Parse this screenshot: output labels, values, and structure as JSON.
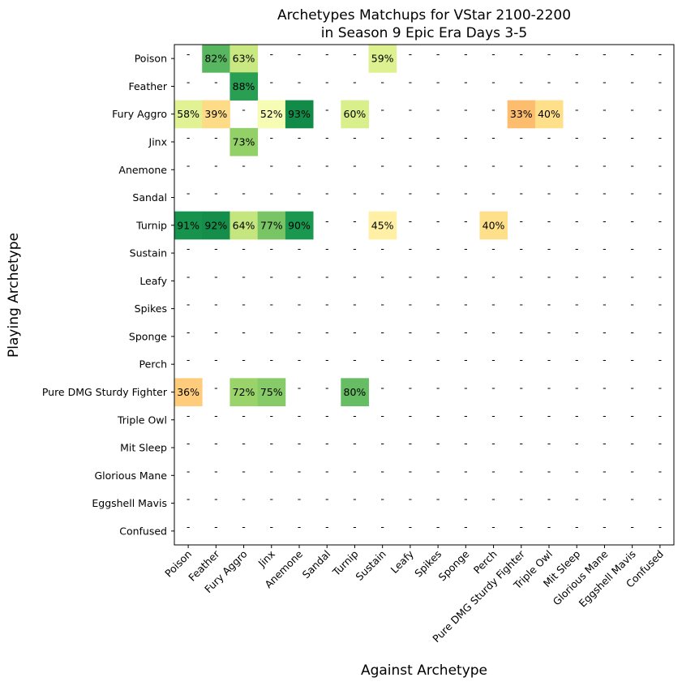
{
  "chart_data": {
    "type": "heatmap",
    "title_lines": [
      "Archetypes Matchups for VStar 2100-2200",
      "in Season 9 Epic Era Days 3-5"
    ],
    "xlabel": "Against Archetype",
    "ylabel": "Playing Archetype",
    "rows": [
      "Poison",
      "Feather",
      "Fury Aggro",
      "Jinx",
      "Anemone",
      "Sandal",
      "Turnip",
      "Sustain",
      "Leafy",
      "Spikes",
      "Sponge",
      "Perch",
      "Pure DMG Sturdy Fighter",
      "Triple Owl",
      "Mit Sleep",
      "Glorious Mane",
      "Eggshell Mavis",
      "Confused"
    ],
    "columns": [
      "Poison",
      "Feather",
      "Fury Aggro",
      "Jinx",
      "Anemone",
      "Sandal",
      "Turnip",
      "Sustain",
      "Leafy",
      "Spikes",
      "Sponge",
      "Perch",
      "Pure DMG Sturdy Fighter",
      "Triple Owl",
      "Mit Sleep",
      "Glorious Mane",
      "Eggshell Mavis",
      "Confused"
    ],
    "value_unit": "% win rate",
    "missing_label": "-",
    "values": [
      [
        null,
        82,
        63,
        null,
        null,
        null,
        null,
        59,
        null,
        null,
        null,
        null,
        null,
        null,
        null,
        null,
        null,
        null
      ],
      [
        null,
        null,
        88,
        null,
        null,
        null,
        null,
        null,
        null,
        null,
        null,
        null,
        null,
        null,
        null,
        null,
        null,
        null
      ],
      [
        58,
        39,
        null,
        52,
        93,
        null,
        60,
        null,
        null,
        null,
        null,
        null,
        33,
        40,
        null,
        null,
        null,
        null
      ],
      [
        null,
        null,
        73,
        null,
        null,
        null,
        null,
        null,
        null,
        null,
        null,
        null,
        null,
        null,
        null,
        null,
        null,
        null
      ],
      [
        null,
        null,
        null,
        null,
        null,
        null,
        null,
        null,
        null,
        null,
        null,
        null,
        null,
        null,
        null,
        null,
        null,
        null
      ],
      [
        null,
        null,
        null,
        null,
        null,
        null,
        null,
        null,
        null,
        null,
        null,
        null,
        null,
        null,
        null,
        null,
        null,
        null
      ],
      [
        91,
        92,
        64,
        77,
        90,
        null,
        null,
        45,
        null,
        null,
        null,
        40,
        null,
        null,
        null,
        null,
        null,
        null
      ],
      [
        null,
        null,
        null,
        null,
        null,
        null,
        null,
        null,
        null,
        null,
        null,
        null,
        null,
        null,
        null,
        null,
        null,
        null
      ],
      [
        null,
        null,
        null,
        null,
        null,
        null,
        null,
        null,
        null,
        null,
        null,
        null,
        null,
        null,
        null,
        null,
        null,
        null
      ],
      [
        null,
        null,
        null,
        null,
        null,
        null,
        null,
        null,
        null,
        null,
        null,
        null,
        null,
        null,
        null,
        null,
        null,
        null
      ],
      [
        null,
        null,
        null,
        null,
        null,
        null,
        null,
        null,
        null,
        null,
        null,
        null,
        null,
        null,
        null,
        null,
        null,
        null
      ],
      [
        null,
        null,
        null,
        null,
        null,
        null,
        null,
        null,
        null,
        null,
        null,
        null,
        null,
        null,
        null,
        null,
        null,
        null
      ],
      [
        36,
        null,
        72,
        75,
        null,
        null,
        80,
        null,
        null,
        null,
        null,
        null,
        null,
        null,
        null,
        null,
        null,
        null
      ],
      [
        null,
        null,
        null,
        null,
        null,
        null,
        null,
        null,
        null,
        null,
        null,
        null,
        null,
        null,
        null,
        null,
        null,
        null
      ],
      [
        null,
        null,
        null,
        null,
        null,
        null,
        null,
        null,
        null,
        null,
        null,
        null,
        null,
        null,
        null,
        null,
        null,
        null
      ],
      [
        null,
        null,
        null,
        null,
        null,
        null,
        null,
        null,
        null,
        null,
        null,
        null,
        null,
        null,
        null,
        null,
        null,
        null
      ],
      [
        null,
        null,
        null,
        null,
        null,
        null,
        null,
        null,
        null,
        null,
        null,
        null,
        null,
        null,
        null,
        null,
        null,
        null
      ],
      [
        null,
        null,
        null,
        null,
        null,
        null,
        null,
        null,
        null,
        null,
        null,
        null,
        null,
        null,
        null,
        null,
        null,
        null
      ]
    ],
    "colormap": "RdYlGn",
    "vmin": 0,
    "vmax": 100
  }
}
